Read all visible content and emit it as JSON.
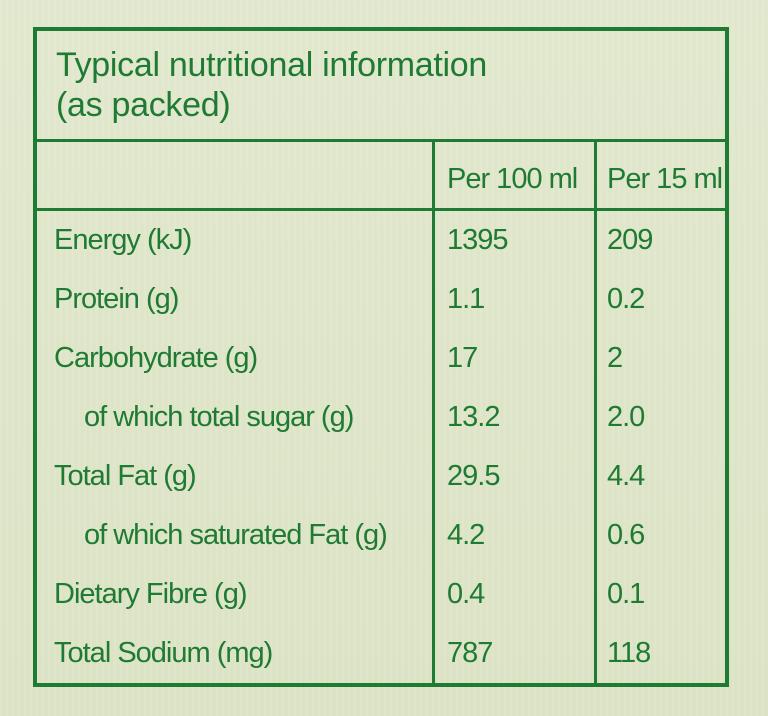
{
  "title": {
    "line1": "Typical nutritional information",
    "line2": "(as packed)"
  },
  "columns": {
    "per_100": "Per 100 ml",
    "per_15": "Per 15 ml"
  },
  "rows": [
    {
      "label": "Energy (kJ)",
      "per_100": "1395",
      "per_15": "209"
    },
    {
      "label": "Protein (g)",
      "per_100": "1.1",
      "per_15": "0.2"
    },
    {
      "label": "Carbohydrate (g)",
      "per_100": "17",
      "per_15": "2"
    },
    {
      "label": "of which total sugar (g)",
      "per_100": "13.2",
      "per_15": "2.0"
    },
    {
      "label": "Total Fat (g)",
      "per_100": "29.5",
      "per_15": "4.4"
    },
    {
      "label": "of which saturated Fat (g)",
      "per_100": "4.2",
      "per_15": "0.6"
    },
    {
      "label": "Dietary Fibre (g)",
      "per_100": "0.4",
      "per_15": "0.1"
    },
    {
      "label": "Total Sodium (mg)",
      "per_100": "787",
      "per_15": "118"
    }
  ],
  "colors": {
    "text": "#1f7a33",
    "background": "#e2e8cd"
  }
}
